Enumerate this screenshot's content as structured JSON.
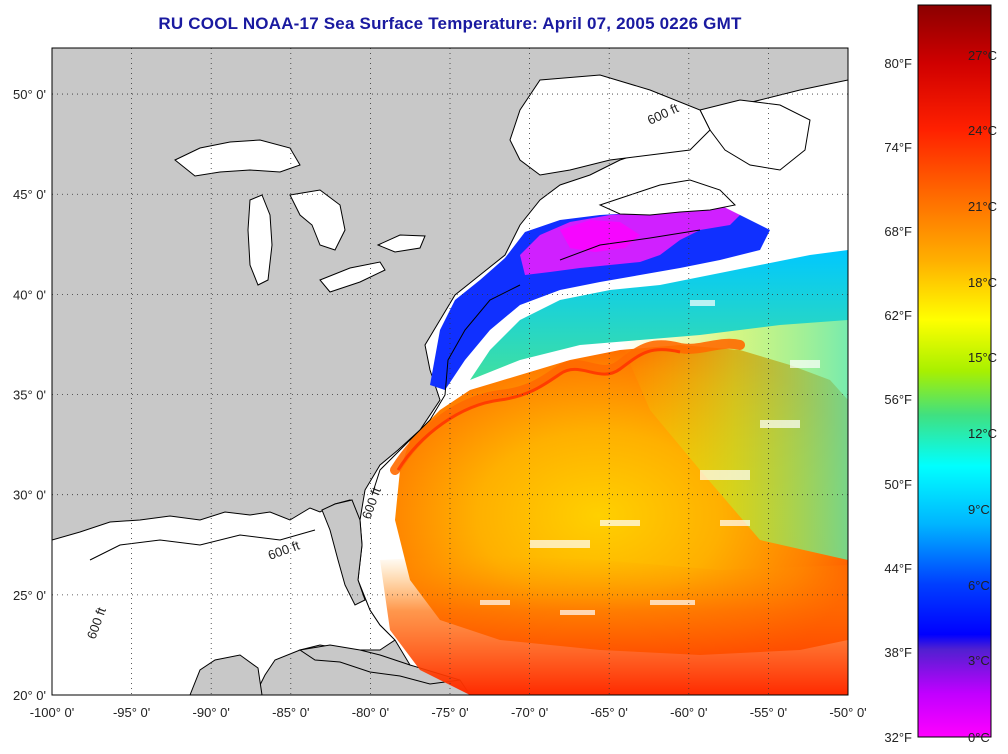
{
  "title": "RU COOL  NOAA-17  Sea Surface Temperature:  April 07, 2005 0226 GMT",
  "map": {
    "lon_range": [
      -100,
      -50
    ],
    "lat_range": [
      20,
      52.3
    ],
    "lon_ticks": [
      "-100° 0'",
      "-95° 0'",
      "-90° 0'",
      "-85° 0'",
      "-80° 0'",
      "-75° 0'",
      "-70° 0'",
      "-65° 0'",
      "-60° 0'",
      "-55° 0'",
      "-50° 0'"
    ],
    "lat_ticks": [
      "20° 0'",
      "25° 0'",
      "30° 0'",
      "35° 0'",
      "40° 0'",
      "45° 0'",
      "50° 0'"
    ],
    "land_color": "#c8c8c8",
    "water_bg_color": "#ffffff",
    "contour_label": "600 ft",
    "grid": "dotted"
  },
  "colorbar": {
    "fahrenheit_labels": [
      "80°F",
      "74°F",
      "68°F",
      "62°F",
      "56°F",
      "50°F",
      "44°F",
      "38°F",
      "32°F"
    ],
    "celsius_labels": [
      "27°C",
      "24°C",
      "21°C",
      "18°C",
      "15°C",
      "12°C",
      "9°C",
      "6°C",
      "3°C",
      "0°C"
    ],
    "colors": [
      "#8b0000",
      "#e00000",
      "#ff4000",
      "#ff8c00",
      "#ffcc00",
      "#ffff00",
      "#b0f000",
      "#40e080",
      "#00ffff",
      "#00b4ff",
      "#0050ff",
      "#0000ff",
      "#6020c0",
      "#c000ff",
      "#ff00ff"
    ]
  }
}
